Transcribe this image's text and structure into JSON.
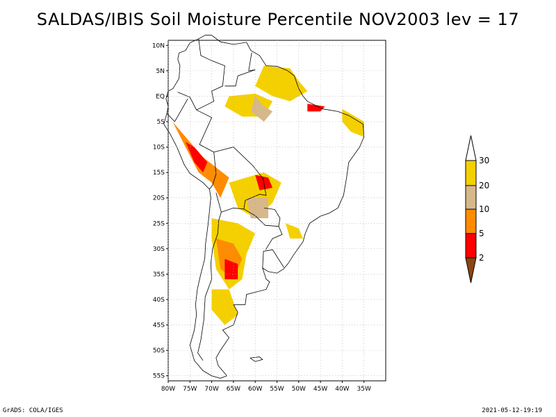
{
  "title": "SALDAS/IBIS Soil Moisture Percentile NOV2003 lev = 17",
  "footer": {
    "left": "GrADS: COLA/IGES",
    "right": "2021-05-12-19:19"
  },
  "map": {
    "region": "South America",
    "lon_range": [
      -80,
      -30
    ],
    "lat_range": [
      -56,
      11
    ],
    "lat_ticks": [
      {
        "value": 10,
        "label": "10N"
      },
      {
        "value": 5,
        "label": "5N"
      },
      {
        "value": 0,
        "label": "EQ"
      },
      {
        "value": -5,
        "label": "5S"
      },
      {
        "value": -10,
        "label": "10S"
      },
      {
        "value": -15,
        "label": "15S"
      },
      {
        "value": -20,
        "label": "20S"
      },
      {
        "value": -25,
        "label": "25S"
      },
      {
        "value": -30,
        "label": "30S"
      },
      {
        "value": -35,
        "label": "35S"
      },
      {
        "value": -40,
        "label": "40S"
      },
      {
        "value": -45,
        "label": "45S"
      },
      {
        "value": -50,
        "label": "50S"
      },
      {
        "value": -55,
        "label": "55S"
      }
    ],
    "lon_ticks": [
      {
        "value": -80,
        "label": "80W"
      },
      {
        "value": -75,
        "label": "75W"
      },
      {
        "value": -70,
        "label": "70W"
      },
      {
        "value": -65,
        "label": "65W"
      },
      {
        "value": -60,
        "label": "60W"
      },
      {
        "value": -55,
        "label": "55W"
      },
      {
        "value": -50,
        "label": "50W"
      },
      {
        "value": -45,
        "label": "45W"
      },
      {
        "value": -40,
        "label": "40W"
      },
      {
        "value": -35,
        "label": "35W"
      }
    ],
    "grid": true
  },
  "colorbar": {
    "levels": [
      {
        "label": "30"
      },
      {
        "label": "20"
      },
      {
        "label": "10"
      },
      {
        "label": "5"
      },
      {
        "label": "2"
      }
    ],
    "colors": {
      "above_30": "#ffffff",
      "20_30": "#f5d000",
      "10_20": "#d6b88a",
      "5_10": "#ff8c00",
      "2_5": "#ff0000",
      "below_2": "#8b4513"
    }
  },
  "shaded_regions": [
    {
      "category": "20_30",
      "color": "#f5d000",
      "lon": -52,
      "lat": 3
    },
    {
      "category": "20_30",
      "color": "#f5d000",
      "lon": -62,
      "lat": -1
    },
    {
      "category": "20_30",
      "color": "#f5d000",
      "lon": -37,
      "lat": -6
    },
    {
      "category": "10_20",
      "color": "#d6b88a",
      "lon": -58,
      "lat": -21
    },
    {
      "category": "5_10",
      "color": "#ff8c00",
      "lon": -65,
      "lat": -30
    },
    {
      "category": "2_5",
      "color": "#ff0000",
      "lon": -66,
      "lat": -35
    },
    {
      "category": "2_5",
      "color": "#ff0000",
      "lon": -59,
      "lat": -17
    },
    {
      "category": "20_30",
      "color": "#f5d000",
      "lon": -68,
      "lat": -42
    }
  ]
}
